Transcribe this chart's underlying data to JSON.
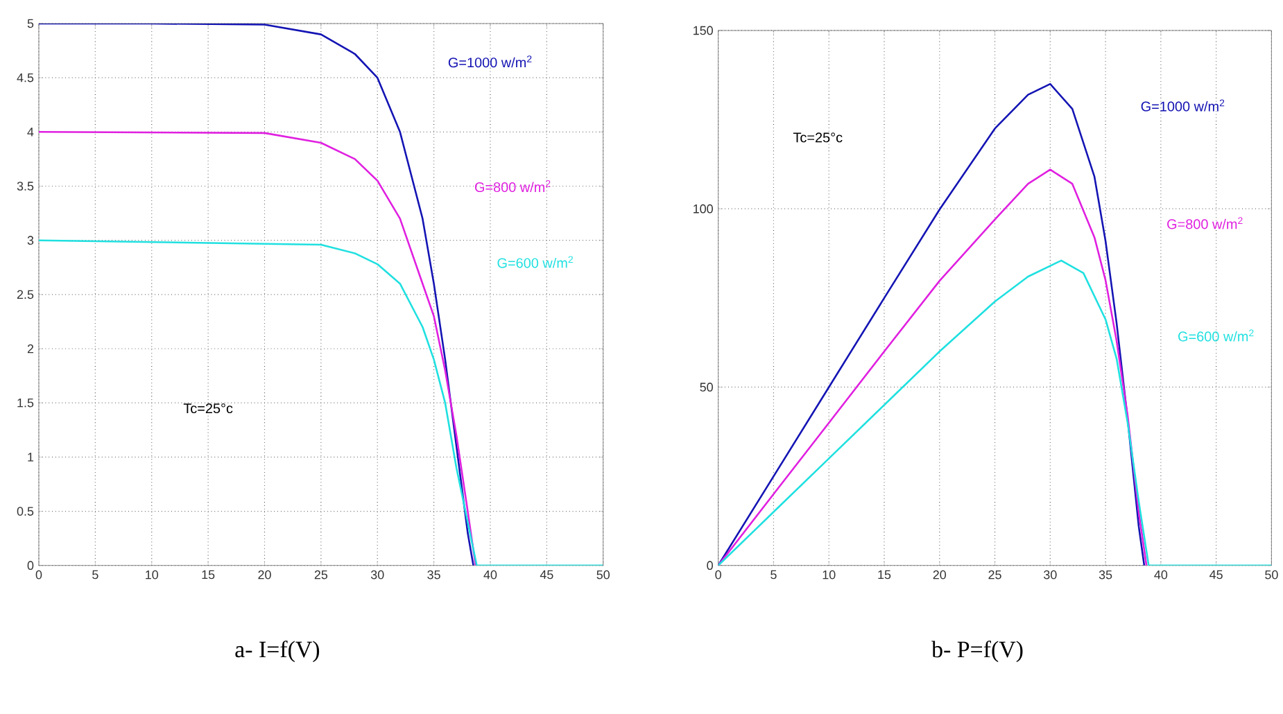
{
  "chart_data": [
    {
      "type": "line",
      "title": "a- I=f(V)",
      "xlim": [
        0,
        50
      ],
      "ylim": [
        0,
        5
      ],
      "xticks": [
        0,
        5,
        10,
        15,
        20,
        25,
        30,
        35,
        40,
        45,
        50
      ],
      "yticks": [
        0,
        0.5,
        1,
        1.5,
        2,
        2.5,
        3,
        3.5,
        4,
        4.5,
        5
      ],
      "grid": true,
      "line_style": "solid",
      "annotations": [
        "Tc=25°c"
      ],
      "series": [
        {
          "name": "G=1000 w/m$^{2}$",
          "color": "#1414b4",
          "x": [
            0,
            10,
            20,
            25,
            28,
            30,
            32,
            34,
            35,
            36,
            37,
            38,
            38.5
          ],
          "values": [
            5,
            5,
            4.99,
            4.9,
            4.72,
            4.5,
            4.0,
            3.2,
            2.6,
            1.9,
            1.1,
            0.3,
            0
          ]
        },
        {
          "name": "G=800 w/m$^{2}$",
          "color": "#e020e0",
          "x": [
            0,
            20,
            25,
            28,
            30,
            32,
            34,
            35,
            36,
            37,
            38,
            38.7
          ],
          "values": [
            4,
            3.99,
            3.9,
            3.75,
            3.55,
            3.2,
            2.6,
            2.3,
            1.8,
            1.2,
            0.5,
            0
          ]
        },
        {
          "name": "G=600 w/m$^{2}$",
          "color": "#20e0e0",
          "x": [
            0,
            25,
            28,
            30,
            32,
            34,
            35,
            36,
            37,
            38,
            38.8,
            50
          ],
          "values": [
            3,
            2.96,
            2.88,
            2.78,
            2.6,
            2.2,
            1.9,
            1.5,
            0.9,
            0.4,
            0,
            0
          ]
        }
      ]
    },
    {
      "type": "line",
      "title": "b- P=f(V)",
      "xlim": [
        0,
        50
      ],
      "ylim": [
        0,
        150
      ],
      "xticks": [
        0,
        5,
        10,
        15,
        20,
        25,
        30,
        35,
        40,
        45,
        50
      ],
      "yticks": [
        0,
        50,
        100,
        150
      ],
      "grid": true,
      "line_style": "solid",
      "annotations": [
        "Tc=25°c"
      ],
      "series": [
        {
          "name": "G=1000 w/m$^{2}$",
          "color": "#1414b4",
          "x": [
            0,
            5,
            10,
            15,
            20,
            25,
            28,
            30,
            32,
            34,
            35,
            36,
            37,
            38,
            38.5
          ],
          "values": [
            0,
            25,
            50,
            75,
            99.8,
            122.5,
            132,
            135,
            128,
            109,
            91,
            68,
            41,
            11,
            0
          ]
        },
        {
          "name": "G=800 w/m$^{2}$",
          "color": "#e020e0",
          "x": [
            0,
            5,
            10,
            15,
            20,
            25,
            28,
            30,
            32,
            34,
            35,
            36,
            37,
            38,
            38.7
          ],
          "values": [
            0,
            20,
            40,
            60,
            79.8,
            97,
            107,
            111,
            107,
            92,
            80,
            63,
            42,
            15,
            0
          ]
        },
        {
          "name": "G=600 w/m$^{2}$",
          "color": "#20e0e0",
          "x": [
            0,
            5,
            10,
            15,
            20,
            25,
            28,
            31,
            33,
            35,
            36,
            37,
            38,
            38.9,
            50
          ],
          "values": [
            0,
            15,
            30,
            45,
            60,
            74,
            81,
            85.5,
            82,
            69,
            58,
            40,
            18,
            0,
            0
          ]
        }
      ]
    }
  ]
}
